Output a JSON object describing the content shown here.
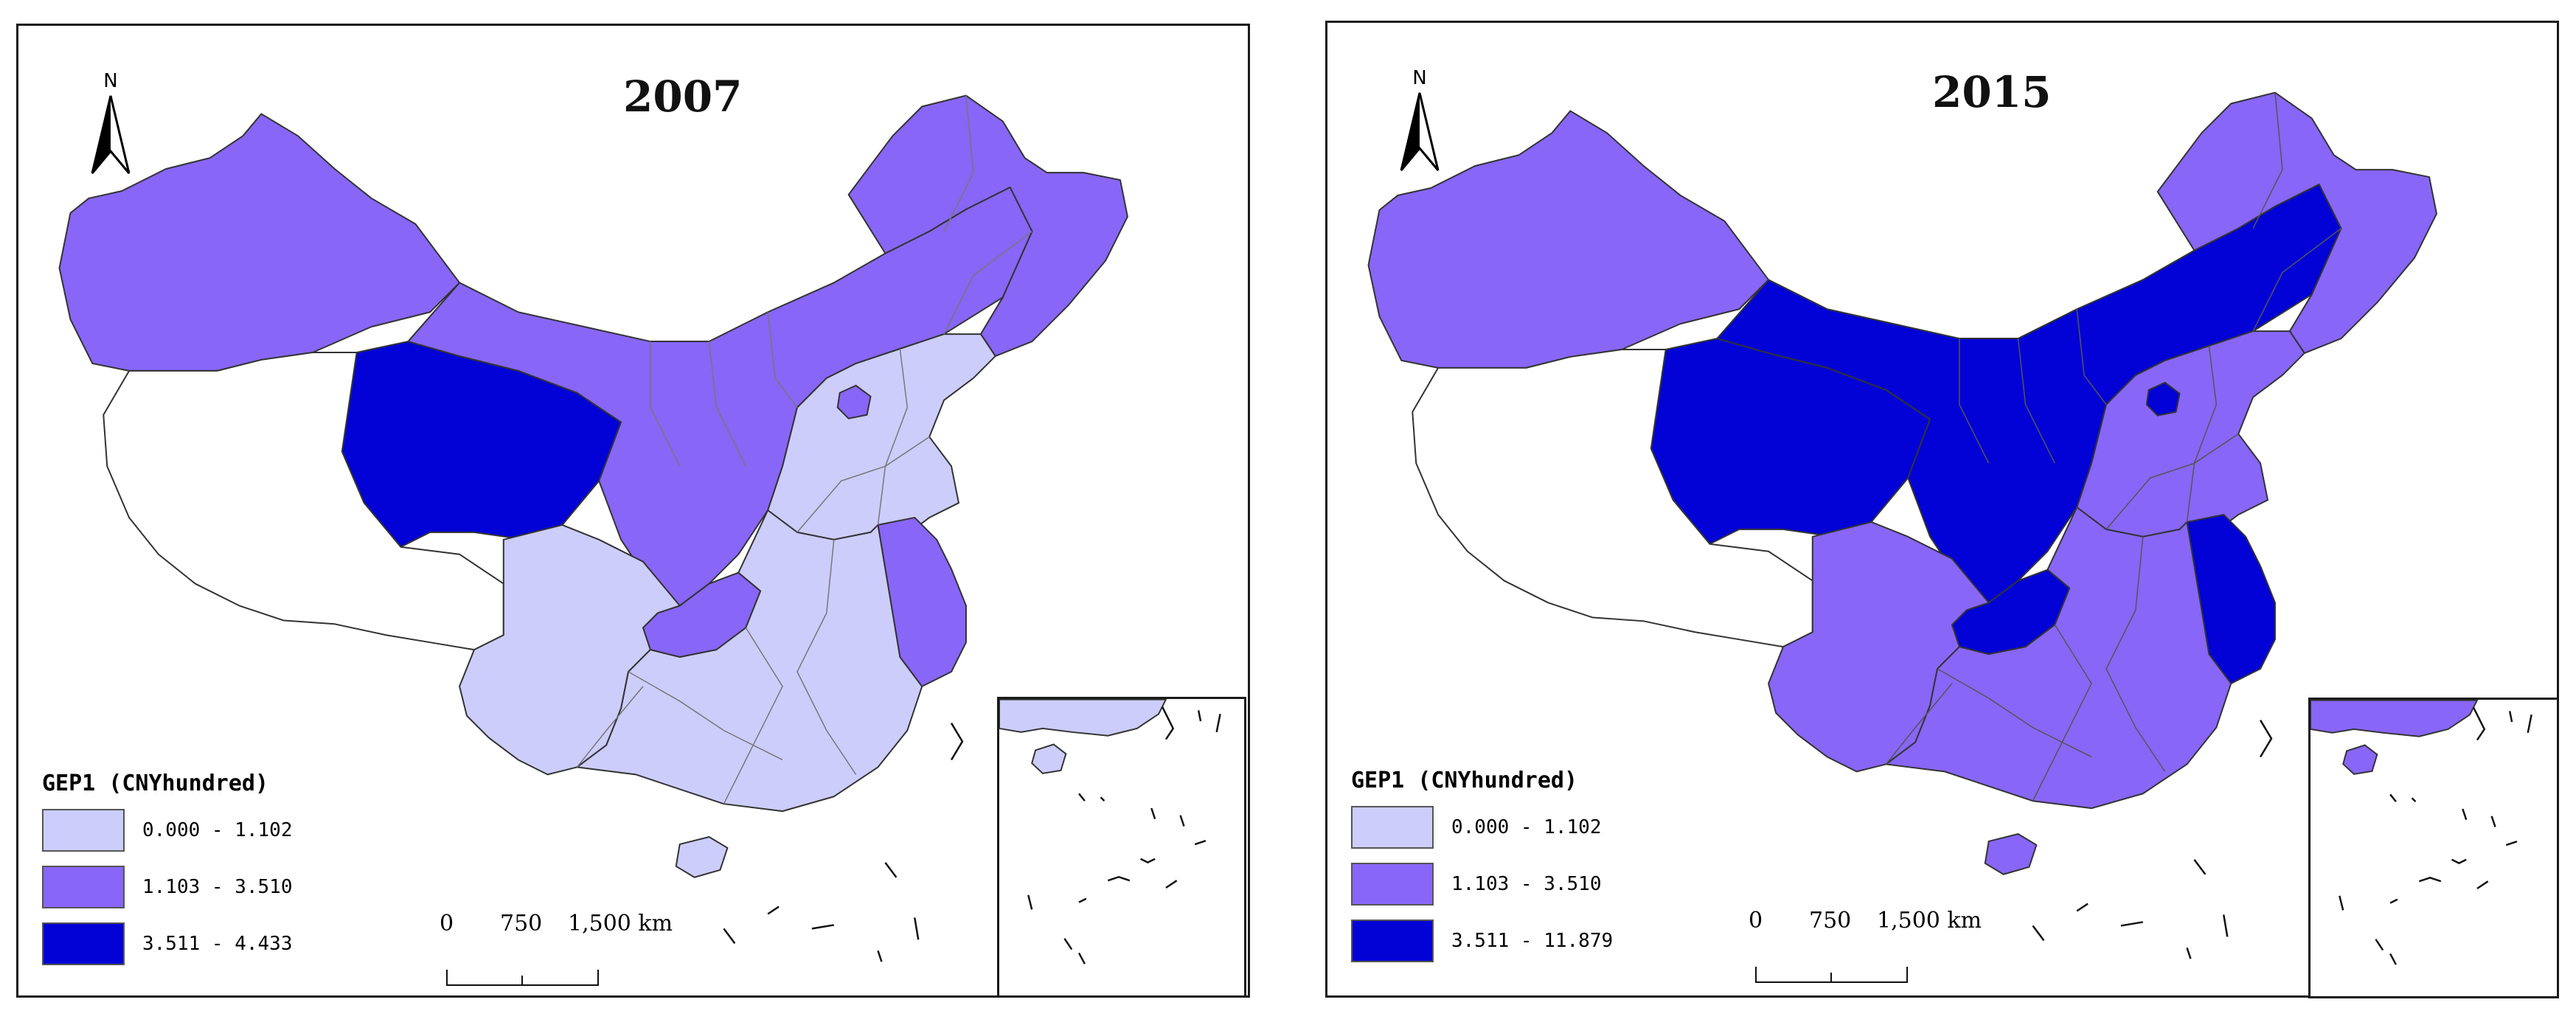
{
  "colors": {
    "class_low": "#cccdfb",
    "class_mid": "#8866f7",
    "class_high": "#0202d6",
    "no_data": "#ffffff",
    "boundary": "#666666"
  },
  "compass": {
    "label": "N"
  },
  "panels": [
    {
      "title": "2007",
      "legend": {
        "title": "GEP1 (CNYhundred)",
        "classes": [
          {
            "label": "0.000 - 1.102",
            "color": "#cccdfb"
          },
          {
            "label": "1.103 - 3.510",
            "color": "#8866f7"
          },
          {
            "label": "3.511 - 4.433",
            "color": "#0202d6"
          }
        ]
      },
      "scale": {
        "t0": "0",
        "t1": "750",
        "t2": "1,500 km"
      },
      "regions": {
        "northwest": "class_mid",
        "qinghai": "class_high",
        "tibet": "no_data",
        "north_band": "class_mid",
        "northeast": "class_mid",
        "north_china_plain": "class_low",
        "beijing_patch": "class_mid",
        "jiangsu_zhejiang": "class_mid",
        "chongqing": "class_mid",
        "southwest": "class_low",
        "central_south": "class_low",
        "hainan": "class_low"
      }
    },
    {
      "title": "2015",
      "legend": {
        "title": "GEP1 (CNYhundred)",
        "classes": [
          {
            "label": "0.000 - 1.102",
            "color": "#cccdfb"
          },
          {
            "label": "1.103 - 3.510",
            "color": "#8866f7"
          },
          {
            "label": "3.511 - 11.879",
            "color": "#0202d6"
          }
        ]
      },
      "scale": {
        "t0": "0",
        "t1": "750",
        "t2": "1,500 km"
      },
      "regions": {
        "northwest": "class_mid",
        "qinghai": "class_high",
        "tibet": "no_data",
        "north_band": "class_high",
        "northeast": "class_mid",
        "north_china_plain": "class_mid",
        "beijing_patch": "class_high",
        "jiangsu_zhejiang": "class_high",
        "chongqing": "class_high",
        "southwest": "class_mid",
        "central_south": "class_mid",
        "hainan": "class_mid"
      }
    }
  ]
}
